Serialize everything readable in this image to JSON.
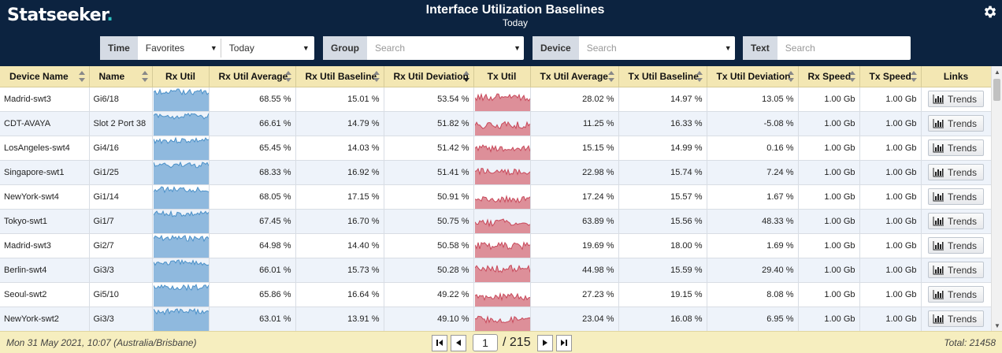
{
  "app": {
    "logo": "Statseeker",
    "logo_dot": "."
  },
  "header": {
    "title": "Interface Utilization Baselines",
    "subtitle": "Today"
  },
  "filters": {
    "time": {
      "label": "Time",
      "preset": "Favorites",
      "range": "Today"
    },
    "group": {
      "label": "Group",
      "placeholder": "Search"
    },
    "device": {
      "label": "Device",
      "placeholder": "Search"
    },
    "text": {
      "label": "Text",
      "placeholder": "Search"
    }
  },
  "table": {
    "columns": [
      "Device Name",
      "Name",
      "Rx Util",
      "Rx Util Average",
      "Rx Util Baseline",
      "Rx Util Deviation",
      "Tx Util",
      "Tx Util Average",
      "Tx Util Baseline",
      "Tx Util Deviation",
      "Rx Speed",
      "Tx Speed",
      "Links"
    ],
    "sorted_column": "Rx Util Deviation",
    "sort_direction": "descending",
    "link_label": "Trends",
    "rows": [
      {
        "device": "Madrid-swt3",
        "name": "Gi6/18",
        "rx_avg": "68.55 %",
        "rx_base": "15.01 %",
        "rx_dev": "53.54 %",
        "tx_avg": "28.02 %",
        "tx_base": "14.97 %",
        "tx_dev": "13.05 %",
        "rx_speed": "1.00 Gb",
        "tx_speed": "1.00 Gb"
      },
      {
        "device": "CDT-AVAYA",
        "name": "Slot 2 Port 38",
        "rx_avg": "66.61 %",
        "rx_base": "14.79 %",
        "rx_dev": "51.82 %",
        "tx_avg": "11.25 %",
        "tx_base": "16.33 %",
        "tx_dev": "-5.08 %",
        "rx_speed": "1.00 Gb",
        "tx_speed": "1.00 Gb"
      },
      {
        "device": "LosAngeles-swt4",
        "name": "Gi4/16",
        "rx_avg": "65.45 %",
        "rx_base": "14.03 %",
        "rx_dev": "51.42 %",
        "tx_avg": "15.15 %",
        "tx_base": "14.99 %",
        "tx_dev": "0.16 %",
        "rx_speed": "1.00 Gb",
        "tx_speed": "1.00 Gb"
      },
      {
        "device": "Singapore-swt1",
        "name": "Gi1/25",
        "rx_avg": "68.33 %",
        "rx_base": "16.92 %",
        "rx_dev": "51.41 %",
        "tx_avg": "22.98 %",
        "tx_base": "15.74 %",
        "tx_dev": "7.24 %",
        "rx_speed": "1.00 Gb",
        "tx_speed": "1.00 Gb"
      },
      {
        "device": "NewYork-swt4",
        "name": "Gi1/14",
        "rx_avg": "68.05 %",
        "rx_base": "17.15 %",
        "rx_dev": "50.91 %",
        "tx_avg": "17.24 %",
        "tx_base": "15.57 %",
        "tx_dev": "1.67 %",
        "rx_speed": "1.00 Gb",
        "tx_speed": "1.00 Gb"
      },
      {
        "device": "Tokyo-swt1",
        "name": "Gi1/7",
        "rx_avg": "67.45 %",
        "rx_base": "16.70 %",
        "rx_dev": "50.75 %",
        "tx_avg": "63.89 %",
        "tx_base": "15.56 %",
        "tx_dev": "48.33 %",
        "rx_speed": "1.00 Gb",
        "tx_speed": "1.00 Gb"
      },
      {
        "device": "Madrid-swt3",
        "name": "Gi2/7",
        "rx_avg": "64.98 %",
        "rx_base": "14.40 %",
        "rx_dev": "50.58 %",
        "tx_avg": "19.69 %",
        "tx_base": "18.00 %",
        "tx_dev": "1.69 %",
        "rx_speed": "1.00 Gb",
        "tx_speed": "1.00 Gb"
      },
      {
        "device": "Berlin-swt4",
        "name": "Gi3/3",
        "rx_avg": "66.01 %",
        "rx_base": "15.73 %",
        "rx_dev": "50.28 %",
        "tx_avg": "44.98 %",
        "tx_base": "15.59 %",
        "tx_dev": "29.40 %",
        "rx_speed": "1.00 Gb",
        "tx_speed": "1.00 Gb"
      },
      {
        "device": "Seoul-swt2",
        "name": "Gi5/10",
        "rx_avg": "65.86 %",
        "rx_base": "16.64 %",
        "rx_dev": "49.22 %",
        "tx_avg": "27.23 %",
        "tx_base": "19.15 %",
        "tx_dev": "8.08 %",
        "rx_speed": "1.00 Gb",
        "tx_speed": "1.00 Gb"
      },
      {
        "device": "NewYork-swt2",
        "name": "Gi3/3",
        "rx_avg": "63.01 %",
        "rx_base": "13.91 %",
        "rx_dev": "49.10 %",
        "tx_avg": "23.04 %",
        "tx_base": "16.08 %",
        "tx_dev": "6.95 %",
        "rx_speed": "1.00 Gb",
        "tx_speed": "1.00 Gb"
      }
    ]
  },
  "pager": {
    "current_page": "1",
    "of_text": "/ 215"
  },
  "footer": {
    "timestamp": "Mon 31 May 2021, 10:07 (Australia/Brisbane)",
    "total": "Total: 21458"
  },
  "colors": {
    "rx_spark": "#4a90c8",
    "rx_spark_fill": "#8fb9de",
    "tx_spark": "#c8485a",
    "tx_spark_fill": "#dd8f99",
    "header_bg": "#0c2340",
    "column_header_bg": "#f3e7b3"
  }
}
